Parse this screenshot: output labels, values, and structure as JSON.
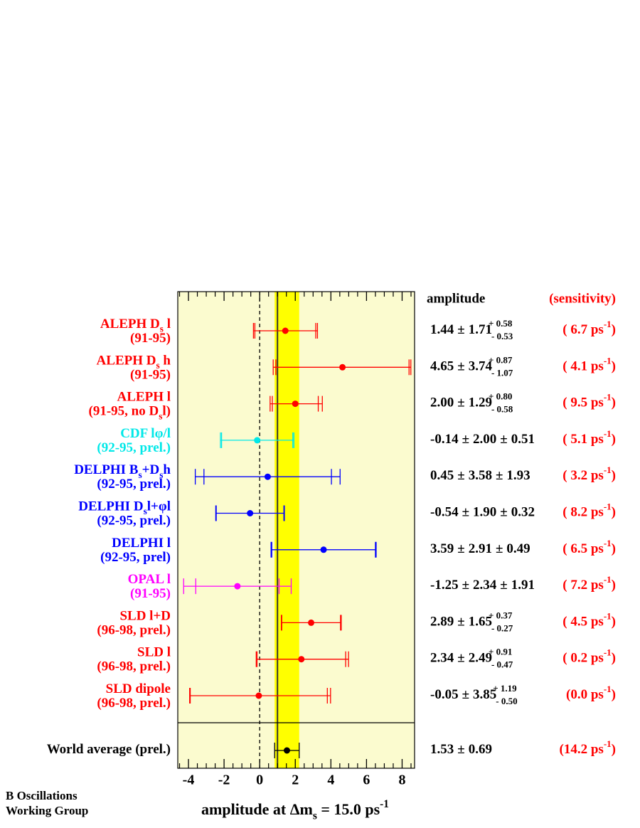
{
  "chart_data": {
    "type": "amplitude",
    "x_title_parts": [
      "amplitude at Δm",
      {
        "sub": "s"
      },
      " = 15.0 ps",
      {
        "sup": "-1"
      }
    ],
    "header_amplitude": "amplitude",
    "header_sensitivity": "(sensitivity)",
    "credit_lines": [
      "B Oscillations",
      "Working Group"
    ],
    "plus_minus": "±",
    "unit_exponent": "-1",
    "close_paren": ")",
    "xlim": [
      -4.6,
      8.7
    ],
    "xticks": [
      -4,
      -2,
      0,
      2,
      4,
      6,
      8
    ],
    "minor_xticks": [
      -4.5,
      -3.5,
      -3,
      -2.5,
      -1.5,
      -1,
      -0.5,
      0.5,
      1,
      1.5,
      2.5,
      3,
      3.5,
      4.5,
      5,
      5.5,
      6.5,
      7,
      7.5,
      8.5
    ],
    "dashed_line_x": 0,
    "solid_line_x": 1,
    "plot_color": "#fbfbcf",
    "band_color": "#ffff00",
    "sensitivity_color": "#ff0000",
    "measurements": [
      {
        "label_lines": [
          [
            "ALEPH D",
            {
              "sub": "s"
            },
            " l"
          ],
          [
            "(91-95)"
          ]
        ],
        "color": "#ff0000",
        "value": 1.44,
        "stat": 1.71,
        "syst_plus": 0.58,
        "syst_minus": 0.53,
        "syst_plus_label": "+ 0.58",
        "syst_minus_label": "- 0.53",
        "sensitivity": 6.7,
        "sensitivity_label": "( 6.7 ps"
      },
      {
        "label_lines": [
          [
            "ALEPH D",
            {
              "sub": "s"
            },
            " h"
          ],
          [
            "(91-95)"
          ]
        ],
        "color": "#ff0000",
        "value": 4.65,
        "stat": 3.74,
        "syst_plus": 0.87,
        "syst_minus": 1.07,
        "syst_plus_label": "+ 0.87",
        "syst_minus_label": "- 1.07",
        "sensitivity": 4.1,
        "sensitivity_label": "( 4.1 ps"
      },
      {
        "label_lines": [
          [
            "ALEPH l"
          ],
          [
            "(91-95, no D",
            {
              "sub": "s"
            },
            "l)"
          ]
        ],
        "color": "#ff0000",
        "value": 2,
        "value_label": "2.00",
        "stat": 1.29,
        "syst_plus": 0.8,
        "syst_minus": 0.58,
        "syst_plus_label": "+ 0.80",
        "syst_minus_label": "- 0.58",
        "sensitivity": 9.5,
        "sensitivity_label": "( 9.5 ps"
      },
      {
        "label_lines": [
          [
            "CDF lφ/l"
          ],
          [
            "(92-95, prel.)"
          ]
        ],
        "color": "#00e8e8",
        "value": -0.14,
        "stat": 2,
        "stat_label": "2.00",
        "syst": 0.51,
        "sensitivity": 5.1,
        "sensitivity_label": "( 5.1 ps"
      },
      {
        "label_lines": [
          [
            "DELPHI B",
            {
              "sub": "s"
            },
            "+D",
            {
              "sub": "s"
            },
            "h"
          ],
          [
            "(92-95, prel.)"
          ]
        ],
        "color": "#0000ff",
        "value": 0.45,
        "stat": 3.58,
        "syst": 1.93,
        "sensitivity": 3.2,
        "sensitivity_label": "( 3.2 ps"
      },
      {
        "label_lines": [
          [
            "DELPHI D",
            {
              "sub": "s"
            },
            "l+φl"
          ],
          [
            "(92-95, prel.)"
          ]
        ],
        "color": "#0000ff",
        "value": -0.54,
        "stat": 1.9,
        "stat_label": "1.90",
        "syst": 0.32,
        "sensitivity": 8.2,
        "sensitivity_label": "( 8.2 ps"
      },
      {
        "label_lines": [
          [
            "DELPHI l"
          ],
          [
            "(92-95, prel)"
          ]
        ],
        "color": "#0000ff",
        "value": 3.59,
        "stat": 2.91,
        "syst": 0.49,
        "sensitivity": 6.5,
        "sensitivity_label": "( 6.5 ps"
      },
      {
        "label_lines": [
          [
            "OPAL l"
          ],
          [
            "(91-95)"
          ]
        ],
        "color": "#ff00ff",
        "value": -1.25,
        "stat": 2.34,
        "syst": 1.91,
        "sensitivity": 7.2,
        "sensitivity_label": "( 7.2 ps"
      },
      {
        "label_lines": [
          [
            "SLD l+D"
          ],
          [
            "(96-98, prel.)"
          ]
        ],
        "color": "#ff0000",
        "value": 2.89,
        "stat": 1.65,
        "syst_plus": 0.37,
        "syst_minus": 0.27,
        "syst_plus_label": "+ 0.37",
        "syst_minus_label": "- 0.27",
        "sensitivity": 4.5,
        "sensitivity_label": "( 4.5 ps"
      },
      {
        "label_lines": [
          [
            "SLD l"
          ],
          [
            "(96-98, prel.)"
          ]
        ],
        "color": "#ff0000",
        "value": 2.34,
        "stat": 2.49,
        "syst_plus": 0.91,
        "syst_minus": 0.47,
        "syst_plus_label": "+ 0.91",
        "syst_minus_label": "- 0.47",
        "sensitivity": 0.2,
        "sensitivity_label": "( 0.2 ps"
      },
      {
        "label_lines": [
          [
            "SLD dipole"
          ],
          [
            "(96-98, prel.)"
          ]
        ],
        "color": "#ff0000",
        "value": -0.05,
        "stat": 3.85,
        "syst_plus": 1.19,
        "syst_minus": 0.5,
        "syst_plus_label": "+ 1.19",
        "syst_minus_label": "- 0.50",
        "sensitivity": 0,
        "sensitivity_label": "(0.0 ps"
      }
    ],
    "average": {
      "label_lines": [
        [
          "World average (prel.)"
        ]
      ],
      "color": "#000000",
      "value": 1.53,
      "stat": 0.69,
      "sensitivity": 14.2,
      "sensitivity_label": "(14.2 ps"
    }
  }
}
